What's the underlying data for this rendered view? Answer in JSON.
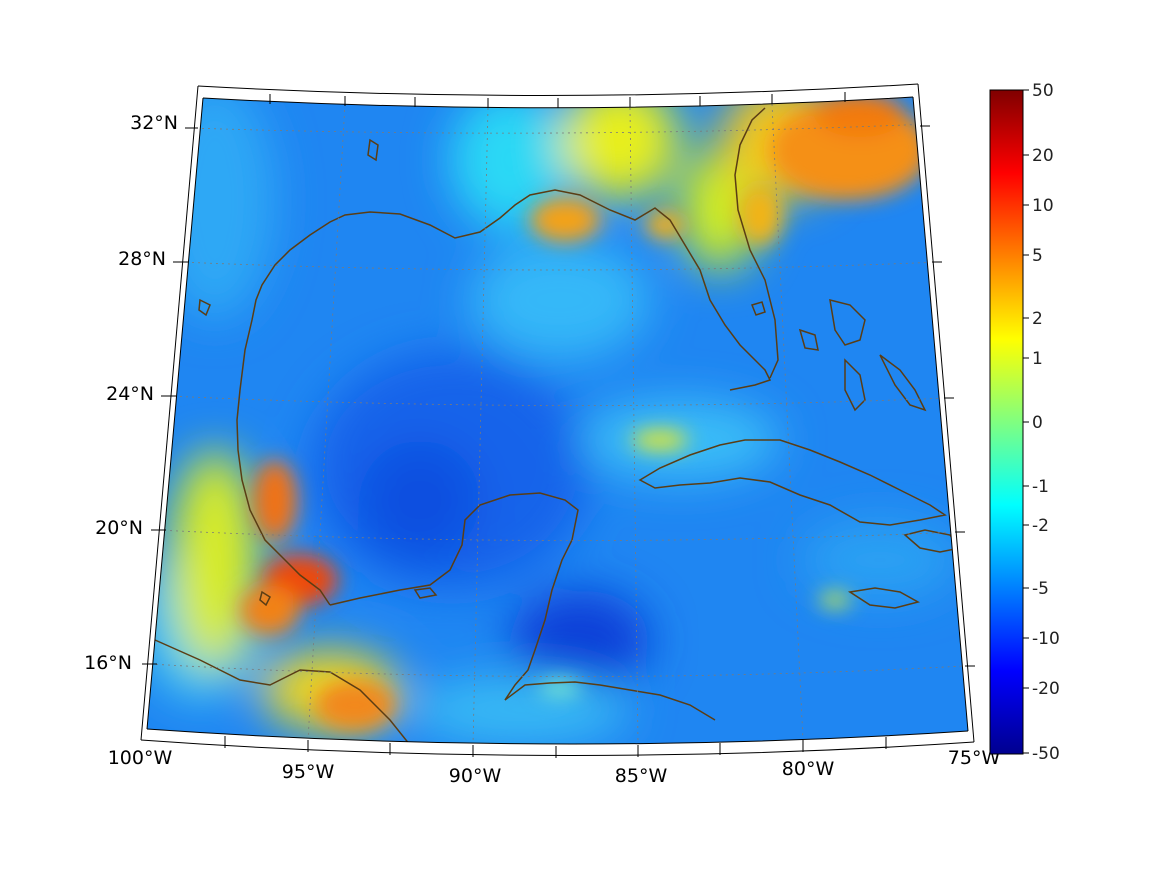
{
  "map": {
    "longitude_labels": [
      "100°W",
      "95°W",
      "90°W",
      "85°W",
      "80°W",
      "75°W"
    ],
    "latitude_labels": [
      "32°N",
      "28°N",
      "24°N",
      "20°N",
      "16°N"
    ],
    "coastline_color": "#5a3d14",
    "frame_color": "#000000"
  },
  "colorbar": {
    "tick_labels": [
      "50",
      "20",
      "10",
      "5",
      "2",
      "1",
      "0",
      "-1",
      "-2",
      "-5",
      "-10",
      "-20",
      "-50"
    ],
    "colormap": "jet",
    "colors": [
      "#00008f",
      "#0000ff",
      "#0080ff",
      "#00ffff",
      "#80ff80",
      "#ffff00",
      "#ff8000",
      "#ff0000",
      "#800000"
    ]
  }
}
